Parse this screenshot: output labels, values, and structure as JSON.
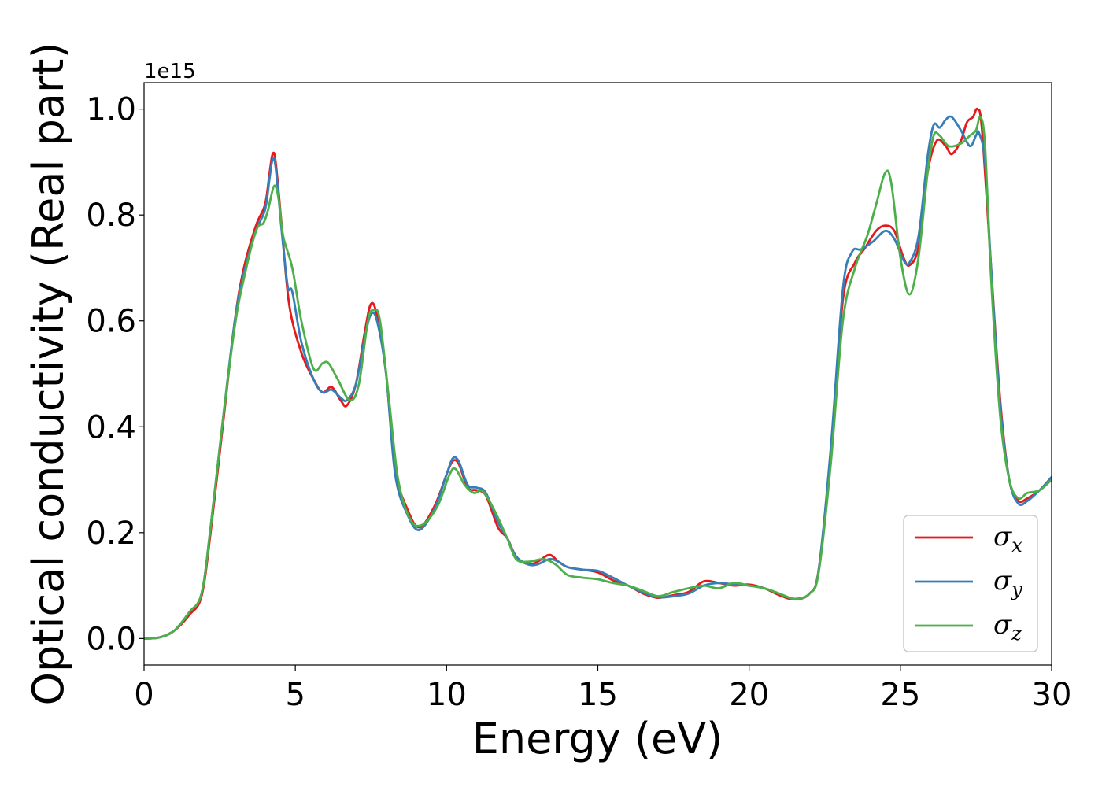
{
  "chart_data": {
    "type": "line",
    "title": "",
    "xlabel": "Energy (eV)",
    "ylabel": "Optical conductivity (Real part)",
    "y_offset_text": "1e15",
    "xlim": [
      0,
      30
    ],
    "ylim": [
      -0.05,
      1.05
    ],
    "y_scale_factor": 1000000000000000.0,
    "x_ticks": [
      0,
      5,
      10,
      15,
      20,
      25,
      30
    ],
    "x_tick_labels": [
      "0",
      "5",
      "10",
      "15",
      "20",
      "25",
      "30"
    ],
    "y_ticks": [
      0.0,
      0.2,
      0.4,
      0.6,
      0.8,
      1.0
    ],
    "y_tick_labels": [
      "0.0",
      "0.2",
      "0.4",
      "0.6",
      "0.8",
      "1.0"
    ],
    "grid": false,
    "legend_position": "lower-right",
    "series": [
      {
        "name": "σ",
        "subscript": "x",
        "color": "#e41a1c",
        "points": [
          [
            0,
            0
          ],
          [
            0.5,
            0.002
          ],
          [
            1,
            0.015
          ],
          [
            1.5,
            0.045
          ],
          [
            1.9,
            0.08
          ],
          [
            2.2,
            0.2
          ],
          [
            2.6,
            0.4
          ],
          [
            3,
            0.6
          ],
          [
            3.3,
            0.7
          ],
          [
            3.7,
            0.78
          ],
          [
            4,
            0.82
          ],
          [
            4.15,
            0.88
          ],
          [
            4.25,
            0.915
          ],
          [
            4.35,
            0.9
          ],
          [
            4.55,
            0.78
          ],
          [
            4.8,
            0.63
          ],
          [
            5.2,
            0.54
          ],
          [
            5.6,
            0.49
          ],
          [
            5.9,
            0.465
          ],
          [
            6.2,
            0.475
          ],
          [
            6.5,
            0.45
          ],
          [
            6.7,
            0.44
          ],
          [
            7,
            0.48
          ],
          [
            7.3,
            0.58
          ],
          [
            7.5,
            0.632
          ],
          [
            7.7,
            0.61
          ],
          [
            8,
            0.5
          ],
          [
            8.3,
            0.32
          ],
          [
            8.7,
            0.245
          ],
          [
            9.1,
            0.21
          ],
          [
            9.6,
            0.25
          ],
          [
            10,
            0.31
          ],
          [
            10.2,
            0.335
          ],
          [
            10.4,
            0.33
          ],
          [
            10.7,
            0.285
          ],
          [
            11,
            0.28
          ],
          [
            11.3,
            0.27
          ],
          [
            11.7,
            0.21
          ],
          [
            12,
            0.19
          ],
          [
            12.3,
            0.155
          ],
          [
            12.7,
            0.14
          ],
          [
            13,
            0.145
          ],
          [
            13.4,
            0.158
          ],
          [
            13.7,
            0.145
          ],
          [
            14,
            0.135
          ],
          [
            14.5,
            0.13
          ],
          [
            15,
            0.125
          ],
          [
            15.5,
            0.11
          ],
          [
            16,
            0.1
          ],
          [
            16.5,
            0.085
          ],
          [
            17,
            0.077
          ],
          [
            17.5,
            0.082
          ],
          [
            18,
            0.088
          ],
          [
            18.5,
            0.108
          ],
          [
            19,
            0.105
          ],
          [
            19.5,
            0.1
          ],
          [
            20,
            0.102
          ],
          [
            20.5,
            0.095
          ],
          [
            21,
            0.082
          ],
          [
            21.5,
            0.074
          ],
          [
            22,
            0.085
          ],
          [
            22.3,
            0.13
          ],
          [
            22.7,
            0.35
          ],
          [
            23.1,
            0.64
          ],
          [
            23.5,
            0.71
          ],
          [
            23.8,
            0.735
          ],
          [
            24.2,
            0.77
          ],
          [
            24.5,
            0.78
          ],
          [
            24.8,
            0.77
          ],
          [
            25.1,
            0.72
          ],
          [
            25.3,
            0.705
          ],
          [
            25.6,
            0.74
          ],
          [
            25.9,
            0.88
          ],
          [
            26.2,
            0.94
          ],
          [
            26.5,
            0.93
          ],
          [
            26.7,
            0.915
          ],
          [
            27,
            0.94
          ],
          [
            27.2,
            0.975
          ],
          [
            27.4,
            0.985
          ],
          [
            27.55,
            1.0
          ],
          [
            27.7,
            0.96
          ],
          [
            28,
            0.7
          ],
          [
            28.3,
            0.45
          ],
          [
            28.6,
            0.3
          ],
          [
            28.9,
            0.26
          ],
          [
            29.2,
            0.265
          ],
          [
            29.6,
            0.28
          ],
          [
            30,
            0.305
          ]
        ]
      },
      {
        "name": "σ",
        "subscript": "y",
        "color": "#377eb8",
        "points": [
          [
            0,
            0
          ],
          [
            0.5,
            0.002
          ],
          [
            1,
            0.015
          ],
          [
            1.5,
            0.05
          ],
          [
            1.9,
            0.085
          ],
          [
            2.2,
            0.21
          ],
          [
            2.6,
            0.41
          ],
          [
            3,
            0.6
          ],
          [
            3.3,
            0.69
          ],
          [
            3.7,
            0.77
          ],
          [
            4,
            0.81
          ],
          [
            4.15,
            0.87
          ],
          [
            4.25,
            0.905
          ],
          [
            4.35,
            0.89
          ],
          [
            4.55,
            0.77
          ],
          [
            4.75,
            0.665
          ],
          [
            4.9,
            0.655
          ],
          [
            5.2,
            0.56
          ],
          [
            5.6,
            0.49
          ],
          [
            5.9,
            0.465
          ],
          [
            6.2,
            0.47
          ],
          [
            6.5,
            0.455
          ],
          [
            6.7,
            0.45
          ],
          [
            7,
            0.48
          ],
          [
            7.3,
            0.57
          ],
          [
            7.5,
            0.612
          ],
          [
            7.7,
            0.6
          ],
          [
            8,
            0.5
          ],
          [
            8.3,
            0.31
          ],
          [
            8.7,
            0.235
          ],
          [
            9.1,
            0.205
          ],
          [
            9.6,
            0.245
          ],
          [
            10,
            0.31
          ],
          [
            10.2,
            0.34
          ],
          [
            10.4,
            0.335
          ],
          [
            10.7,
            0.29
          ],
          [
            11,
            0.285
          ],
          [
            11.3,
            0.275
          ],
          [
            11.7,
            0.22
          ],
          [
            12,
            0.19
          ],
          [
            12.3,
            0.155
          ],
          [
            12.7,
            0.14
          ],
          [
            13,
            0.14
          ],
          [
            13.4,
            0.15
          ],
          [
            13.7,
            0.145
          ],
          [
            14,
            0.135
          ],
          [
            14.5,
            0.13
          ],
          [
            15,
            0.128
          ],
          [
            15.5,
            0.115
          ],
          [
            16,
            0.1
          ],
          [
            16.5,
            0.087
          ],
          [
            17,
            0.078
          ],
          [
            17.5,
            0.08
          ],
          [
            18,
            0.085
          ],
          [
            18.5,
            0.1
          ],
          [
            19,
            0.105
          ],
          [
            19.5,
            0.102
          ],
          [
            20,
            0.1
          ],
          [
            20.5,
            0.095
          ],
          [
            21,
            0.085
          ],
          [
            21.5,
            0.075
          ],
          [
            22,
            0.085
          ],
          [
            22.3,
            0.13
          ],
          [
            22.7,
            0.36
          ],
          [
            23.1,
            0.66
          ],
          [
            23.4,
            0.73
          ],
          [
            23.7,
            0.735
          ],
          [
            24.1,
            0.75
          ],
          [
            24.5,
            0.77
          ],
          [
            24.8,
            0.755
          ],
          [
            25.1,
            0.715
          ],
          [
            25.3,
            0.71
          ],
          [
            25.6,
            0.76
          ],
          [
            25.9,
            0.91
          ],
          [
            26.1,
            0.97
          ],
          [
            26.3,
            0.965
          ],
          [
            26.5,
            0.98
          ],
          [
            26.7,
            0.985
          ],
          [
            27,
            0.96
          ],
          [
            27.3,
            0.93
          ],
          [
            27.5,
            0.95
          ],
          [
            27.6,
            0.955
          ],
          [
            27.8,
            0.9
          ],
          [
            28,
            0.7
          ],
          [
            28.3,
            0.44
          ],
          [
            28.6,
            0.3
          ],
          [
            28.9,
            0.255
          ],
          [
            29.2,
            0.26
          ],
          [
            29.6,
            0.28
          ],
          [
            30,
            0.305
          ]
        ]
      },
      {
        "name": "σ",
        "subscript": "z",
        "color": "#4daf4a",
        "points": [
          [
            0,
            0
          ],
          [
            0.5,
            0.002
          ],
          [
            1,
            0.015
          ],
          [
            1.5,
            0.05
          ],
          [
            1.9,
            0.085
          ],
          [
            2.2,
            0.21
          ],
          [
            2.6,
            0.41
          ],
          [
            3,
            0.59
          ],
          [
            3.3,
            0.68
          ],
          [
            3.7,
            0.77
          ],
          [
            3.95,
            0.785
          ],
          [
            4.1,
            0.81
          ],
          [
            4.3,
            0.855
          ],
          [
            4.45,
            0.83
          ],
          [
            4.6,
            0.76
          ],
          [
            4.9,
            0.7
          ],
          [
            5.2,
            0.6
          ],
          [
            5.6,
            0.51
          ],
          [
            5.9,
            0.52
          ],
          [
            6.1,
            0.52
          ],
          [
            6.4,
            0.49
          ],
          [
            6.8,
            0.45
          ],
          [
            7.1,
            0.48
          ],
          [
            7.4,
            0.6
          ],
          [
            7.6,
            0.62
          ],
          [
            7.8,
            0.6
          ],
          [
            8.1,
            0.45
          ],
          [
            8.4,
            0.3
          ],
          [
            8.8,
            0.225
          ],
          [
            9.2,
            0.215
          ],
          [
            9.7,
            0.25
          ],
          [
            10.1,
            0.31
          ],
          [
            10.3,
            0.32
          ],
          [
            10.6,
            0.29
          ],
          [
            10.9,
            0.275
          ],
          [
            11.2,
            0.278
          ],
          [
            11.6,
            0.24
          ],
          [
            12,
            0.19
          ],
          [
            12.3,
            0.15
          ],
          [
            12.7,
            0.145
          ],
          [
            13.2,
            0.15
          ],
          [
            13.6,
            0.14
          ],
          [
            14,
            0.12
          ],
          [
            14.5,
            0.115
          ],
          [
            15,
            0.112
          ],
          [
            15.5,
            0.105
          ],
          [
            16,
            0.1
          ],
          [
            16.5,
            0.09
          ],
          [
            17,
            0.08
          ],
          [
            17.5,
            0.088
          ],
          [
            18,
            0.095
          ],
          [
            18.5,
            0.1
          ],
          [
            19,
            0.095
          ],
          [
            19.5,
            0.105
          ],
          [
            20,
            0.1
          ],
          [
            20.5,
            0.095
          ],
          [
            21,
            0.085
          ],
          [
            21.5,
            0.075
          ],
          [
            22,
            0.085
          ],
          [
            22.3,
            0.125
          ],
          [
            22.7,
            0.33
          ],
          [
            23.1,
            0.6
          ],
          [
            23.5,
            0.7
          ],
          [
            23.9,
            0.76
          ],
          [
            24.2,
            0.82
          ],
          [
            24.5,
            0.88
          ],
          [
            24.7,
            0.86
          ],
          [
            25,
            0.72
          ],
          [
            25.3,
            0.65
          ],
          [
            25.6,
            0.72
          ],
          [
            25.9,
            0.88
          ],
          [
            26.1,
            0.95
          ],
          [
            26.3,
            0.95
          ],
          [
            26.6,
            0.93
          ],
          [
            27,
            0.935
          ],
          [
            27.3,
            0.95
          ],
          [
            27.5,
            0.96
          ],
          [
            27.65,
            0.985
          ],
          [
            27.8,
            0.93
          ],
          [
            28,
            0.68
          ],
          [
            28.3,
            0.42
          ],
          [
            28.6,
            0.3
          ],
          [
            28.9,
            0.265
          ],
          [
            29.2,
            0.275
          ],
          [
            29.6,
            0.28
          ],
          [
            30,
            0.3
          ]
        ]
      }
    ]
  }
}
